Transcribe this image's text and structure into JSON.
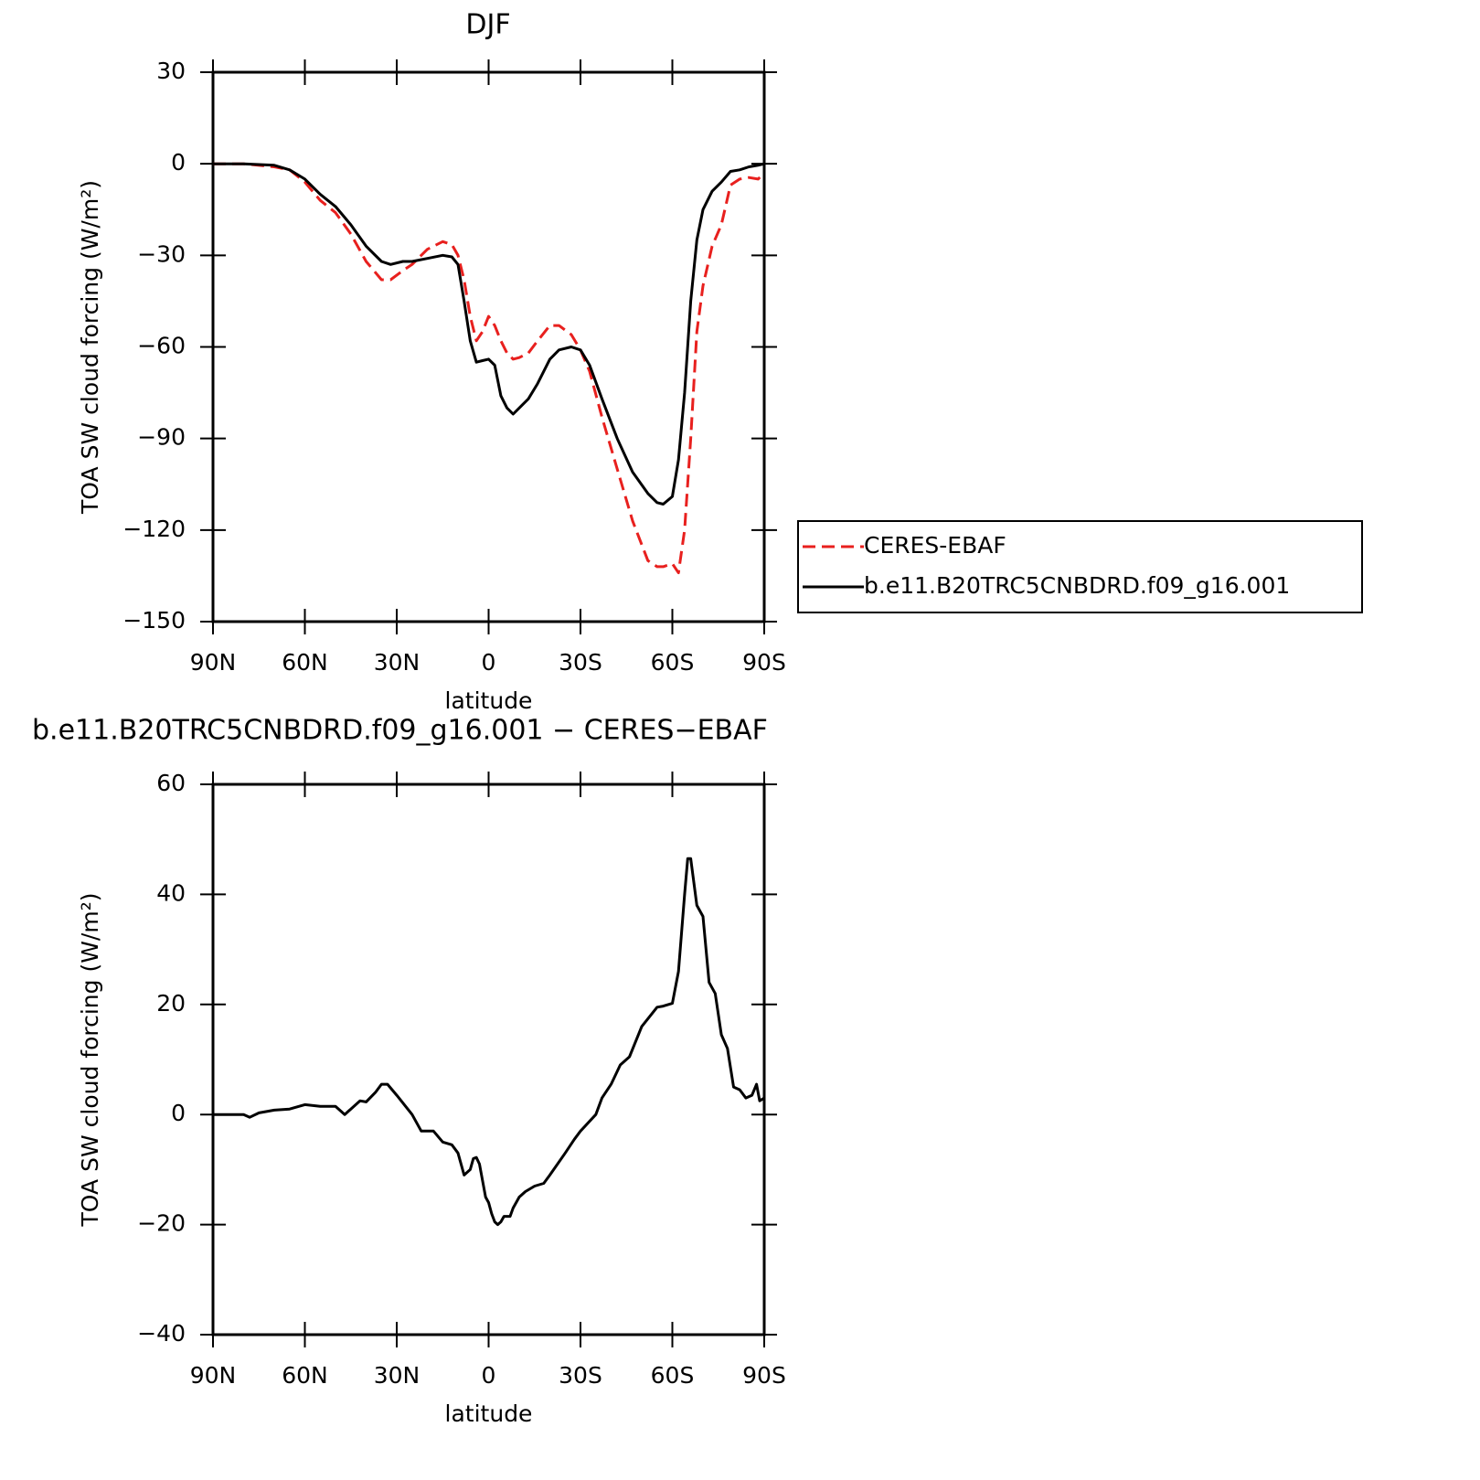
{
  "chart_data": [
    {
      "type": "line",
      "title": "DJF",
      "x_label": "latitude",
      "y_label": "TOA SW cloud forcing (W/m²)",
      "x": [
        90,
        80,
        70,
        65,
        60,
        55,
        50,
        45,
        40,
        35,
        32,
        28,
        25,
        20,
        15,
        12,
        10,
        8,
        6,
        4,
        2,
        0,
        -2,
        -4,
        -6,
        -8,
        -10,
        -13,
        -16,
        -20,
        -23,
        -27,
        -30,
        -33,
        -37,
        -42,
        -47,
        -52,
        -55,
        -57,
        -60,
        -62,
        -64,
        -66,
        -68,
        -70,
        -73,
        -76,
        -79,
        -82,
        -85,
        -88,
        -90
      ],
      "series": [
        {
          "name": "CERES-EBAF",
          "color": "#e8201e",
          "dash": true,
          "values": [
            0,
            0,
            -1,
            -2,
            -6,
            -12,
            -16,
            -23,
            -32,
            -38,
            -38,
            -35,
            -33,
            -28,
            -25.5,
            -26.5,
            -30,
            -38,
            -50,
            -58,
            -55,
            -50,
            -53,
            -58,
            -62,
            -64,
            -63.5,
            -62,
            -58,
            -53,
            -53,
            -56,
            -61,
            -68,
            -83,
            -100,
            -117,
            -130,
            -132,
            -132,
            -131,
            -134,
            -120,
            -90,
            -55,
            -40,
            -27,
            -20,
            -7,
            -5,
            -4.5,
            -5,
            -3
          ]
        },
        {
          "name": "b.e11.B20TRC5CNBDRD.f09_g16.001",
          "color": "#000000",
          "dash": false,
          "values": [
            0,
            0,
            -0.5,
            -2,
            -5,
            -10,
            -14,
            -20,
            -27,
            -32,
            -33,
            -32,
            -32,
            -31,
            -30,
            -30.5,
            -33,
            -45,
            -58,
            -65,
            -64.5,
            -64,
            -66,
            -76,
            -80,
            -82,
            -80,
            -77,
            -72,
            -64,
            -61,
            -60,
            -61,
            -66,
            -77,
            -90,
            -101,
            -108,
            -111,
            -111.5,
            -109,
            -97,
            -75,
            -45,
            -25,
            -15,
            -9,
            -6,
            -2.5,
            -2,
            -1,
            -0.5,
            0
          ]
        }
      ],
      "xlim": [
        90,
        -90
      ],
      "xticks": [
        {
          "value": 90,
          "label": "90N"
        },
        {
          "value": 60,
          "label": "60N"
        },
        {
          "value": 30,
          "label": "30N"
        },
        0,
        {
          "value": -30,
          "label": "30S"
        },
        {
          "value": -60,
          "label": "60S"
        },
        {
          "value": -90,
          "label": "90S"
        }
      ],
      "ylim": [
        -150,
        30
      ],
      "yticks": [
        30,
        0,
        {
          "value": -30,
          "label": "−30"
        },
        {
          "value": -60,
          "label": "−60"
        },
        {
          "value": -90,
          "label": "−90"
        },
        {
          "value": -120,
          "label": "−120"
        },
        {
          "value": -150,
          "label": "−150"
        }
      ],
      "legend": "right"
    },
    {
      "type": "line",
      "title": "b.e11.B20TRC5CNBDRD.f09_g16.001 − CERES−EBAF",
      "x_label": "latitude",
      "y_label": "TOA SW cloud forcing (W/m²)",
      "x": [
        90,
        80,
        78,
        75,
        70,
        65,
        60,
        55,
        50,
        47,
        45,
        42,
        40,
        37,
        35,
        33,
        30,
        25,
        22,
        18,
        15,
        12,
        10,
        8,
        6,
        5,
        4,
        3,
        1,
        0,
        -1,
        -2,
        -3,
        -4,
        -5,
        -7,
        -8,
        -10,
        -12,
        -15,
        -18,
        -20,
        -25,
        -28,
        -30,
        -35,
        -37,
        -40,
        -43,
        -46,
        -50,
        -55,
        -57,
        -60,
        -62,
        -64,
        -65,
        -66,
        -68,
        -70,
        -72,
        -74,
        -76,
        -78,
        -80,
        -82,
        -84,
        -86,
        -87.5,
        -88.5,
        -90
      ],
      "series": [
        {
          "name": "b.e11.B20TRC5CNBDRD.f09_g16.001 − CERES−EBAF",
          "color": "#000000",
          "dash": false,
          "values": [
            0,
            0,
            -0.5,
            0.3,
            0.8,
            1,
            1.8,
            1.5,
            1.5,
            0,
            1,
            2.5,
            2.3,
            4,
            5.5,
            5.5,
            3.5,
            0,
            -3,
            -3,
            -5,
            -5.5,
            -7,
            -11,
            -10,
            -8,
            -7.8,
            -9,
            -15,
            -16,
            -18,
            -19.5,
            -20,
            -19.5,
            -18.5,
            -18.5,
            -17,
            -15,
            -14,
            -13,
            -12.5,
            -11,
            -7,
            -4.5,
            -3,
            0,
            3,
            5.5,
            9,
            10.5,
            16,
            19.5,
            19.7,
            20.2,
            26,
            40,
            46.5,
            46.5,
            38,
            36,
            24,
            22,
            14.5,
            12,
            5,
            4.5,
            3,
            3.5,
            5.5,
            2.5,
            3
          ]
        }
      ],
      "xlim": [
        90,
        -90
      ],
      "xticks": [
        {
          "value": 90,
          "label": "90N"
        },
        {
          "value": 60,
          "label": "60N"
        },
        {
          "value": 30,
          "label": "30N"
        },
        0,
        {
          "value": -30,
          "label": "30S"
        },
        {
          "value": -60,
          "label": "60S"
        },
        {
          "value": -90,
          "label": "90S"
        }
      ],
      "ylim": [
        -40,
        60
      ],
      "yticks": [
        60,
        40,
        20,
        0,
        {
          "value": -20,
          "label": "−20"
        },
        {
          "value": -40,
          "label": "−40"
        }
      ]
    }
  ]
}
